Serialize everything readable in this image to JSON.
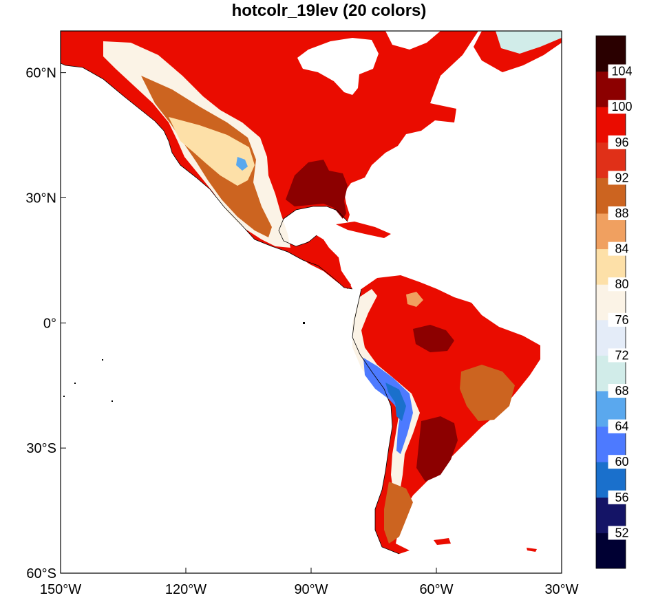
{
  "title": "hotcolr_19lev (20 colors)",
  "map": {
    "lon_range": [
      -150,
      -30
    ],
    "lat_range": [
      -60,
      70
    ],
    "x_ticks": [
      {
        "lon": -150,
        "label": "150°W"
      },
      {
        "lon": -120,
        "label": "120°W"
      },
      {
        "lon": -90,
        "label": "90°W"
      },
      {
        "lon": -60,
        "label": "60°W"
      },
      {
        "lon": -30,
        "label": "30°W"
      }
    ],
    "y_ticks": [
      {
        "lat": 60,
        "label": "60°N"
      },
      {
        "lat": 30,
        "label": "30°N"
      },
      {
        "lat": 0,
        "label": "0°"
      },
      {
        "lat": -30,
        "label": "30°S"
      },
      {
        "lat": -60,
        "label": "60°S"
      }
    ],
    "ocean_color": "#ffffff",
    "coastline_color": "#000000"
  },
  "colorbar": {
    "orientation": "vertical",
    "placement": "right",
    "levels": [
      52,
      56,
      60,
      64,
      68,
      72,
      76,
      80,
      84,
      88,
      92,
      96,
      100,
      104
    ],
    "colors": [
      "#000033",
      "#141466",
      "#1a70cc",
      "#4d7aff",
      "#5aa8ee",
      "#d1ece9",
      "#e4ecf8",
      "#fbf3e6",
      "#fde0a8",
      "#f0a060",
      "#cc6420",
      "#e03018",
      "#ea0c00",
      "#8c0000",
      "#2a0000"
    ],
    "labels": [
      "52",
      "56",
      "60",
      "64",
      "68",
      "72",
      "76",
      "80",
      "84",
      "88",
      "92",
      "96",
      "100",
      "104"
    ]
  }
}
